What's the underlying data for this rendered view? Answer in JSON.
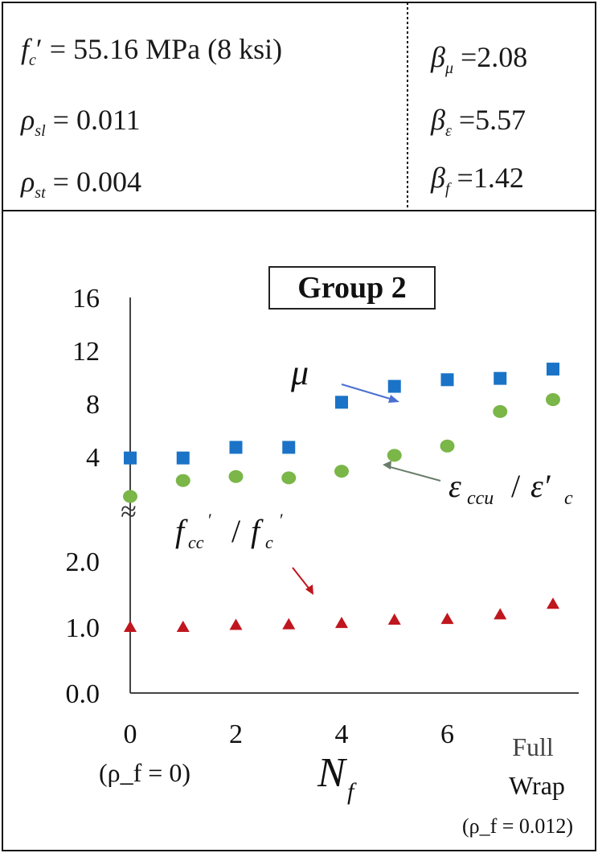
{
  "params_left": {
    "fc": {
      "symbol": "f",
      "sub": "c",
      "prime": "′",
      "eq": "=",
      "value": "55.16 MPa (8 ksi)"
    },
    "rho_sl": {
      "symbol": "ρ",
      "sub": "sl",
      "eq": "=",
      "value": "0.011"
    },
    "rho_st": {
      "symbol": "ρ",
      "sub": "st",
      "eq": "=",
      "value": "0.004"
    }
  },
  "params_right": {
    "beta_mu": {
      "symbol": "β",
      "sub": "μ",
      "eq": "=",
      "value": "2.08"
    },
    "beta_eps": {
      "symbol": "β",
      "sub": "ε",
      "eq": "=",
      "value": "5.57"
    },
    "beta_f": {
      "symbol": "β",
      "sub": "f",
      "eq": "=",
      "value": "1.42"
    }
  },
  "chart_data": {
    "type": "scatter",
    "title": "Group 2",
    "xlabel": "N",
    "xlabel_sub": "f",
    "x_ticks": [
      "0",
      "2",
      "4",
      "6"
    ],
    "x_tick_values": [
      0,
      2,
      4,
      6
    ],
    "x_annotation_left": "(ρ_f = 0)",
    "x_annotation_right_line1": "Full",
    "x_annotation_right_line2": "Wrap",
    "x_annotation_right_line3": "(ρ_f = 0.012)",
    "xlim": [
      0,
      8
    ],
    "upper_axis": {
      "ticks": [
        "4",
        "8",
        "12",
        "16"
      ],
      "tick_values": [
        4,
        8,
        12,
        16
      ],
      "ylim": [
        0,
        16
      ]
    },
    "lower_axis": {
      "ticks": [
        "0.0",
        "1.0",
        "2.0"
      ],
      "tick_values": [
        0,
        1,
        2
      ],
      "ylim": [
        0,
        2.5
      ]
    },
    "axis_break": "≈",
    "series": [
      {
        "name": "μ",
        "axis": "upper",
        "marker": "square",
        "color": "#1a73c7",
        "x": [
          0,
          1,
          2,
          3,
          4,
          5,
          6,
          7,
          8
        ],
        "y": [
          3.9,
          3.9,
          4.7,
          4.7,
          8.1,
          9.3,
          9.8,
          9.9,
          10.6
        ]
      },
      {
        "name": "ε_ccu / ε′_c",
        "axis": "upper",
        "marker": "circle",
        "color": "#7ab648",
        "x": [
          0,
          1,
          2,
          3,
          4,
          5,
          6,
          7,
          8
        ],
        "y": [
          1.0,
          2.2,
          2.5,
          2.4,
          2.9,
          4.1,
          4.8,
          7.4,
          8.3
        ]
      },
      {
        "name": "f′_cc / f′_c",
        "axis": "lower",
        "marker": "triangle",
        "color": "#c0161e",
        "x": [
          0,
          1,
          2,
          3,
          4,
          5,
          6,
          7,
          8
        ],
        "y": [
          1.0,
          1.0,
          1.03,
          1.04,
          1.06,
          1.11,
          1.12,
          1.19,
          1.35
        ]
      }
    ],
    "labels": {
      "mu": "μ",
      "eps_main": "ε",
      "eps_sub": "ccu",
      "eps_sep": "/",
      "eps_den": "ε′",
      "eps_den_sub": "c",
      "f_num": "f",
      "f_num_sub": "cc",
      "f_prime": "′",
      "f_sep": "/",
      "f_den": "f",
      "f_den_sub": "c"
    }
  }
}
